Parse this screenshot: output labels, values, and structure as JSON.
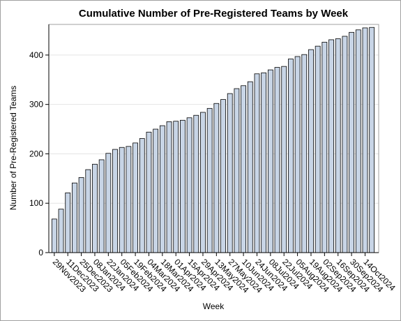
{
  "chart_data": {
    "type": "bar",
    "title": "Cumulative Number of Pre-Registered Teams by Week",
    "xlabel": "Week",
    "ylabel": "Number of Pre-Registered Teams",
    "categories": [
      "29Nov2023",
      null,
      "11Dec2023",
      null,
      "25Dec2023",
      null,
      "08Jan2024",
      null,
      "22Jan2024",
      null,
      "05Feb2024",
      null,
      "19Feb2024",
      null,
      "04Mar2024",
      null,
      "18Mar2024",
      null,
      "01Apr2024",
      null,
      "15Apr2024",
      null,
      "29Apr2024",
      null,
      "13May2024",
      null,
      "27May2024",
      null,
      "10Jun2024",
      null,
      "24Jun2024",
      null,
      "08Jul2024",
      null,
      "22Jul2024",
      null,
      "05Aug2024",
      null,
      "19Aug2024",
      null,
      "02Sep2024",
      null,
      "16Sep2024",
      null,
      "30Sep2024",
      null,
      "14Oct2024",
      null
    ],
    "values": [
      68,
      88,
      121,
      141,
      152,
      168,
      179,
      188,
      201,
      209,
      213,
      215,
      222,
      231,
      244,
      250,
      257,
      265,
      266,
      268,
      273,
      278,
      284,
      292,
      302,
      310,
      322,
      332,
      338,
      346,
      362,
      364,
      370,
      375,
      377,
      392,
      397,
      401,
      411,
      418,
      426,
      431,
      433,
      438,
      446,
      451,
      455,
      456
    ],
    "color": "#c8d5e6",
    "ylim": [
      0,
      462
    ],
    "yticks": [
      0,
      100,
      200,
      300,
      400
    ],
    "grid": true
  }
}
